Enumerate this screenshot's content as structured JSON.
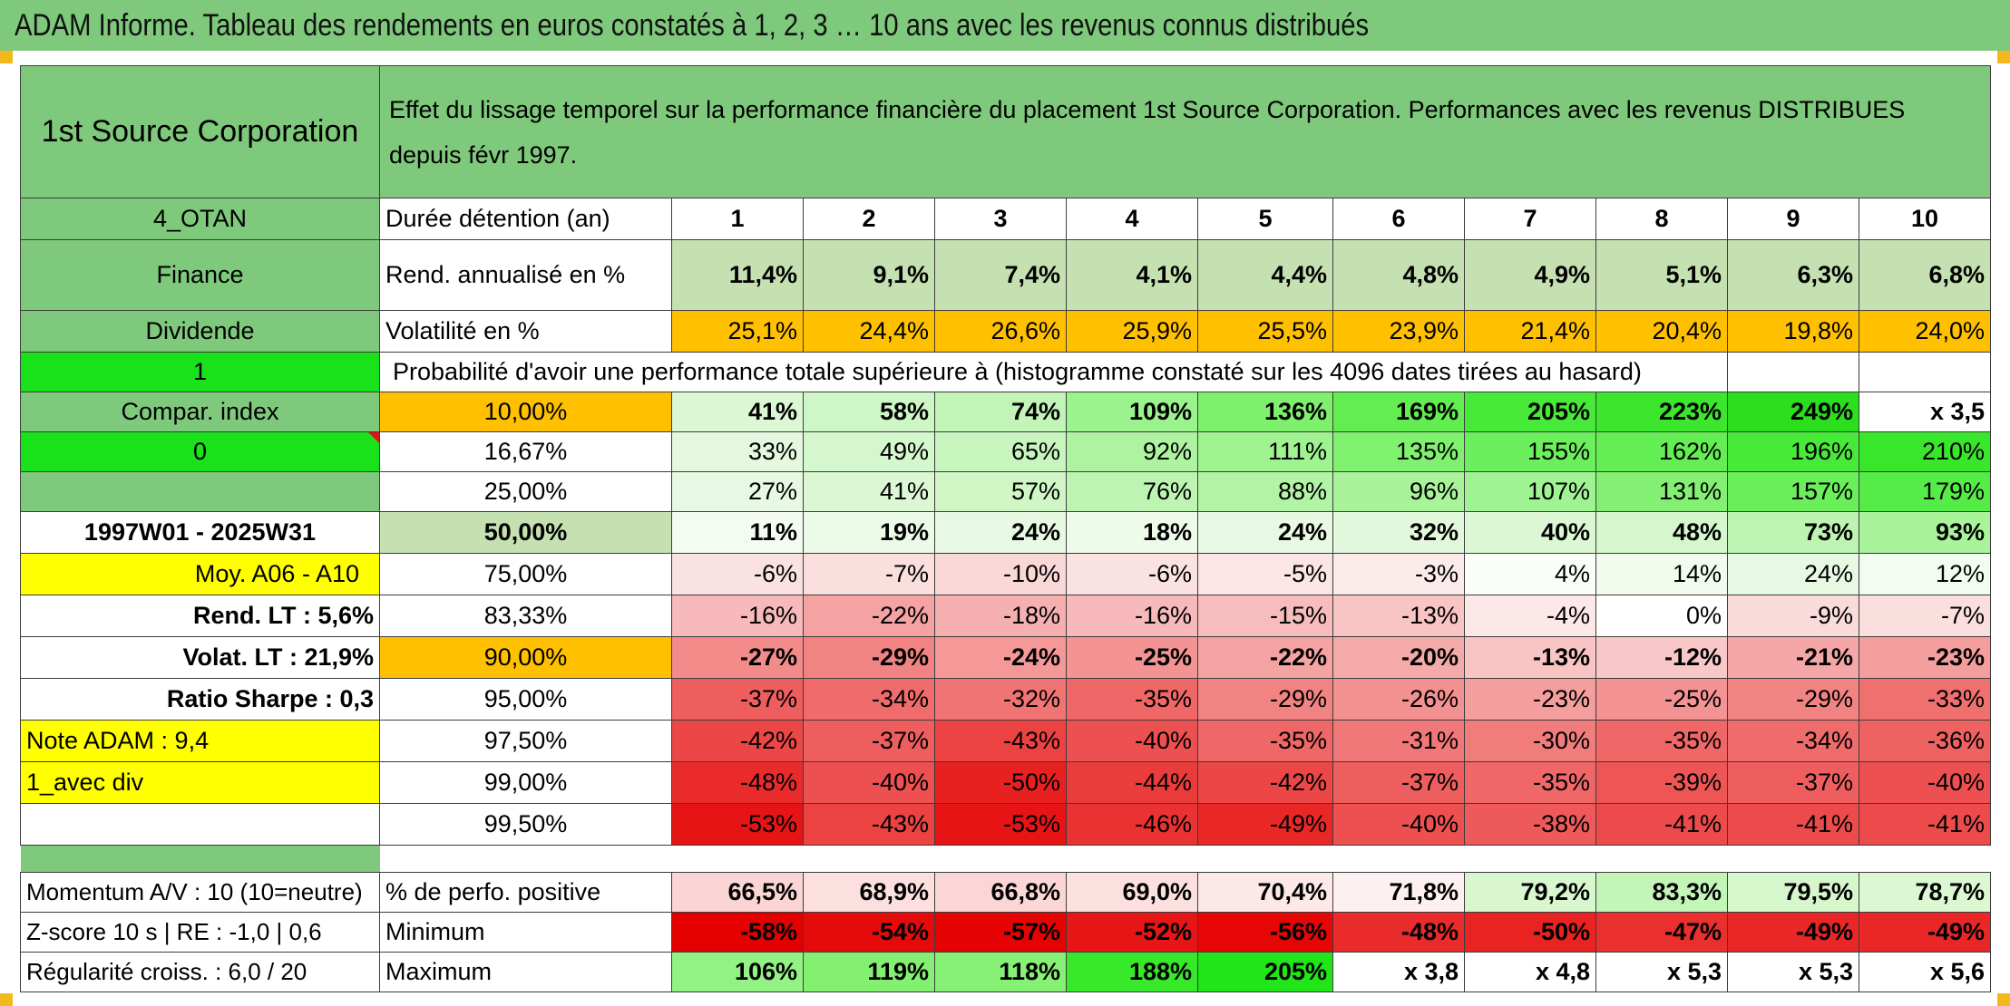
{
  "page": {
    "title": "ADAM Informe. Tableau des rendements en euros constatés à 1, 2, 3 … 10 ans avec les revenus connus distribués",
    "colors": {
      "header_green": "#7fc97c",
      "pale_green": "#c6e1b1",
      "orange": "#ffc000",
      "lime": "#19e21b",
      "yellow": "#ffff00",
      "red_text": "#e0121b"
    }
  },
  "header": {
    "company": "1st Source Corporation",
    "description": "Effet du lissage temporel sur la performance financière du placement 1st Source Corporation. Performances avec les revenus DISTRIBUES depuis févr 1997."
  },
  "left": {
    "code": "4_OTAN",
    "sector": "Finance",
    "type": "Dividende",
    "flag1": "1",
    "compar_index": "Compar. index",
    "flag0": "0",
    "period": "1997W01 - 2025W31",
    "moy": "Moy. A06 - A10",
    "rend_lt": "Rend. LT :   5,6%",
    "volat_lt": "Volat. LT :   21,9%",
    "sharpe": "Ratio Sharpe :    0,3",
    "note": "Note ADAM : 9,4",
    "variant": "1_avec div"
  },
  "duration": {
    "label": "Durée détention (an)",
    "years": [
      "1",
      "2",
      "3",
      "4",
      "5",
      "6",
      "7",
      "8",
      "9",
      "10"
    ]
  },
  "rend": {
    "label": "Rend. annualisé en %",
    "values": [
      "11,4%",
      "9,1%",
      "7,4%",
      "4,1%",
      "4,4%",
      "4,8%",
      "4,9%",
      "5,1%",
      "6,3%",
      "6,8%"
    ]
  },
  "volat": {
    "label": "Volatilité en %",
    "values": [
      "25,1%",
      "24,4%",
      "26,6%",
      "25,9%",
      "25,5%",
      "23,9%",
      "21,4%",
      "20,4%",
      "19,8%",
      "24,0%"
    ]
  },
  "proba_label": "Probabilité d'avoir une performance totale supérieure à (histogramme constaté sur les 4096 dates tirées au hasard)",
  "prob_rows": [
    {
      "p": "10,00%",
      "v": [
        "41%",
        "58%",
        "74%",
        "109%",
        "136%",
        "169%",
        "205%",
        "223%",
        "249%",
        "x 3,5"
      ],
      "bg": [
        "#dcf7d4",
        "#cff6c6",
        "#c1f4b6",
        "#9af38c",
        "#7ff06e",
        "#62ee51",
        "#48ea39",
        "#3ce62c",
        "#2bdf1f",
        "#ffffff"
      ]
    },
    {
      "p": "16,67%",
      "v": [
        "33%",
        "49%",
        "65%",
        "92%",
        "111%",
        "135%",
        "155%",
        "162%",
        "196%",
        "210%"
      ],
      "bg": [
        "#e4f8de",
        "#d5f7cd",
        "#c7f5bd",
        "#aef4a0",
        "#9ff391",
        "#80f06f",
        "#6cef5c",
        "#63ee53",
        "#47ea39",
        "#38e62b"
      ]
    },
    {
      "p": "25,00%",
      "v": [
        "27%",
        "41%",
        "57%",
        "76%",
        "88%",
        "96%",
        "107%",
        "131%",
        "157%",
        "179%"
      ],
      "bg": [
        "#e8f9e3",
        "#dcf7d4",
        "#d0f6c6",
        "#bdf4b1",
        "#b2f4a5",
        "#a9f39b",
        "#a0f392",
        "#84f073",
        "#6aef5b",
        "#56ec47"
      ]
    },
    {
      "p": "50,00%",
      "v": [
        "11%",
        "19%",
        "24%",
        "18%",
        "24%",
        "32%",
        "40%",
        "48%",
        "73%",
        "93%"
      ],
      "bg": [
        "#f4fcf2",
        "#ecfae8",
        "#e8f9e3",
        "#eefbea",
        "#e8f9e3",
        "#e2f8dc",
        "#dbf7d3",
        "#d5f7cd",
        "#bdf4b1",
        "#a9f39b"
      ]
    },
    {
      "p": "75,00%",
      "v": [
        "-6%",
        "-7%",
        "-10%",
        "-6%",
        "-5%",
        "-3%",
        "4%",
        "14%",
        "24%",
        "12%"
      ],
      "bg": [
        "#fbe2e2",
        "#fbdfdf",
        "#fad8d8",
        "#fbe2e2",
        "#fbe5e5",
        "#fcebeb",
        "#fafef9",
        "#f1fbee",
        "#e8f9e3",
        "#f3fcf1"
      ]
    },
    {
      "p": "83,33%",
      "v": [
        "-16%",
        "-22%",
        "-18%",
        "-16%",
        "-15%",
        "-13%",
        "-4%",
        "0%",
        "-9%",
        "-7%"
      ],
      "bg": [
        "#f7b9b9",
        "#f5a2a2",
        "#f6b0b0",
        "#f7b9b9",
        "#f7bdbd",
        "#f8c4c4",
        "#fce8e8",
        "#ffffff",
        "#fadbdb",
        "#fbdfdf"
      ]
    },
    {
      "p": "90,00%",
      "v": [
        "-27%",
        "-29%",
        "-24%",
        "-25%",
        "-22%",
        "-20%",
        "-13%",
        "-12%",
        "-21%",
        "-23%"
      ],
      "bg": [
        "#f38b8b",
        "#f28383",
        "#f49898",
        "#f39393",
        "#f5a2a2",
        "#f5aaaa",
        "#f8c4c4",
        "#f8c8c8",
        "#f5a6a6",
        "#f49e9e"
      ]
    },
    {
      "p": "95,00%",
      "v": [
        "-37%",
        "-34%",
        "-32%",
        "-35%",
        "-29%",
        "-26%",
        "-23%",
        "-25%",
        "-29%",
        "-33%"
      ],
      "bg": [
        "#ef5e5e",
        "#f06b6b",
        "#f17474",
        "#ef6767",
        "#f28383",
        "#f39090",
        "#f49e9e",
        "#f39393",
        "#f28383",
        "#f06f6f"
      ]
    },
    {
      "p": "97,50%",
      "v": [
        "-42%",
        "-37%",
        "-43%",
        "-40%",
        "-35%",
        "-31%",
        "-30%",
        "-35%",
        "-34%",
        "-36%"
      ],
      "bg": [
        "#ec4646",
        "#ef5e5e",
        "#ec4242",
        "#ed5050",
        "#ef6767",
        "#f17878",
        "#f17c7c",
        "#ef6767",
        "#f06b6b",
        "#ef6262"
      ]
    },
    {
      "p": "99,00%",
      "v": [
        "-48%",
        "-40%",
        "-50%",
        "-44%",
        "-42%",
        "-37%",
        "-35%",
        "-39%",
        "-37%",
        "-40%"
      ],
      "bg": [
        "#e92b2b",
        "#ed5050",
        "#e82020",
        "#eb3c3c",
        "#ec4646",
        "#ef5e5e",
        "#ef6767",
        "#ee5555",
        "#ef5e5e",
        "#ed5050"
      ]
    },
    {
      "p": "99,50%",
      "v": [
        "-53%",
        "-43%",
        "-53%",
        "-46%",
        "-49%",
        "-40%",
        "-38%",
        "-41%",
        "-41%",
        "-41%"
      ],
      "bg": [
        "#e61414",
        "#ec4242",
        "#e61414",
        "#ea3232",
        "#e92727",
        "#ed5050",
        "#ee5959",
        "#ed4b4b",
        "#ed4b4b",
        "#ed4b4b"
      ]
    }
  ],
  "momentum": "Momentum A/V : 10 (10=neutre)",
  "zscore": "Z-score 10 s | RE : -1,0 | 0,6",
  "regularite": "Régularité croiss. : 6,0 / 20",
  "pct_pos": {
    "label": "% de perfo. positive",
    "values": [
      "66,5%",
      "68,9%",
      "66,8%",
      "69,0%",
      "70,4%",
      "71,8%",
      "79,2%",
      "83,3%",
      "79,5%",
      "78,7%"
    ],
    "bg": [
      "#fbd5d5",
      "#fce0e0",
      "#fbd6d6",
      "#fce0e0",
      "#fde8e8",
      "#fdf0f0",
      "#d8f7ce",
      "#c3f4b8",
      "#d6f7cc",
      "#dcf8d3"
    ]
  },
  "minimum": {
    "label": "Minimum",
    "values": [
      "-58%",
      "-54%",
      "-57%",
      "-52%",
      "-56%",
      "-48%",
      "-50%",
      "-47%",
      "-49%",
      "-49%"
    ],
    "bg": [
      "#e50000",
      "#e60b0b",
      "#e50303",
      "#e71515",
      "#e60606",
      "#ea2b2b",
      "#e92222",
      "#ea2f2f",
      "#e92727",
      "#e92727"
    ]
  },
  "maximum": {
    "label": "Maximum",
    "values": [
      "106%",
      "119%",
      "118%",
      "188%",
      "205%",
      "x 3,8",
      "x 4,8",
      "x 5,3",
      "x 5,3",
      "x 5,6"
    ],
    "bg": [
      "#93f284",
      "#83f072",
      "#86f175",
      "#38e82a",
      "#22e519",
      "#ffffff",
      "#ffffff",
      "#ffffff",
      "#ffffff",
      "#ffffff"
    ]
  }
}
